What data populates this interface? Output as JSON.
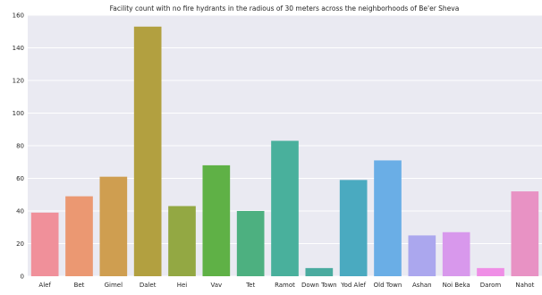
{
  "chart_data": {
    "type": "bar",
    "title": "Facility count with no fire hydrants in the radious of 30 meters across the neighborhoods of Be'er Sheva",
    "xlabel": "",
    "ylabel": "",
    "categories": [
      "Alef",
      "Bet",
      "Gimel",
      "Dalet",
      "Hei",
      "Vav",
      "Tet",
      "Ramot",
      "Down Town",
      "Yod Alef",
      "Old Town",
      "Ashan",
      "Noi Beka",
      "Darom",
      "Nahot"
    ],
    "values": [
      39,
      49,
      61,
      153,
      43,
      68,
      40,
      83,
      5,
      59,
      71,
      25,
      27,
      5,
      52
    ],
    "colors": [
      "#f0909a",
      "#eb9872",
      "#cf9e50",
      "#b2a040",
      "#93a843",
      "#5fb146",
      "#4db080",
      "#49b09c",
      "#4aab9f",
      "#4aaac0",
      "#6aaee6",
      "#aba7ee",
      "#d898ec",
      "#ef8ee6",
      "#e892c4"
    ],
    "ylim": [
      0,
      160
    ],
    "yticks": [
      0,
      20,
      40,
      60,
      80,
      100,
      120,
      140,
      160
    ],
    "grid": true,
    "background": "#eaeaf2"
  }
}
